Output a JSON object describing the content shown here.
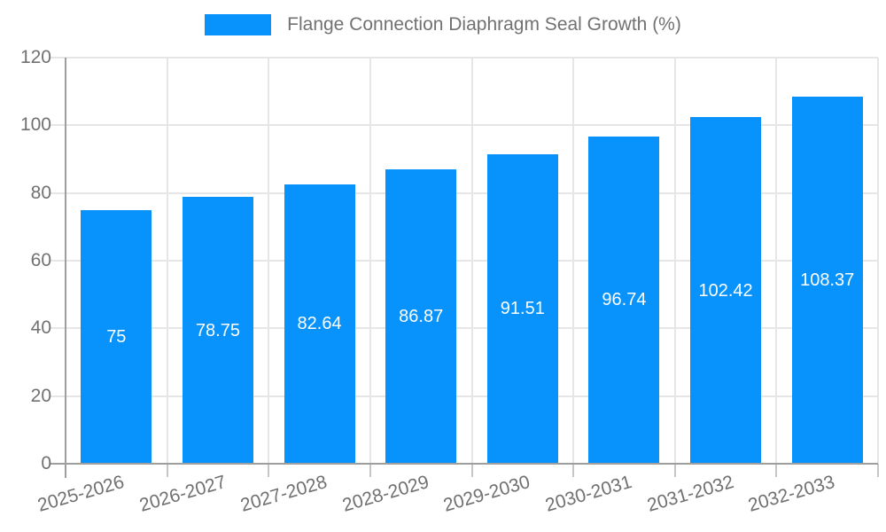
{
  "legend": {
    "series_label": "Flange Connection Diaphragm Seal Growth (%)"
  },
  "colors": {
    "bar": "#0892fb",
    "grid": "#e6e6e6",
    "axis": "#9e9e9e",
    "tick": "#c6c6c6",
    "text": "#717171",
    "value_label": "#ffffff",
    "background": "#ffffff"
  },
  "chart_data": {
    "type": "bar",
    "title": "Flange Connection Diaphragm Seal Growth (%)",
    "categories": [
      "2025-2026",
      "2026-2027",
      "2027-2028",
      "2028-2029",
      "2029-2030",
      "2030-2031",
      "2031-2032",
      "2032-2033"
    ],
    "values": [
      75,
      78.75,
      82.64,
      86.87,
      91.51,
      96.74,
      102.42,
      108.37
    ],
    "value_labels": [
      "75",
      "78.75",
      "82.64",
      "86.87",
      "91.51",
      "96.74",
      "102.42",
      "108.37"
    ],
    "xlabel": "",
    "ylabel": "",
    "ylim": [
      0,
      120
    ],
    "yticks": [
      0,
      20,
      40,
      60,
      80,
      100,
      120
    ],
    "grid": true,
    "legend_position": "top"
  }
}
